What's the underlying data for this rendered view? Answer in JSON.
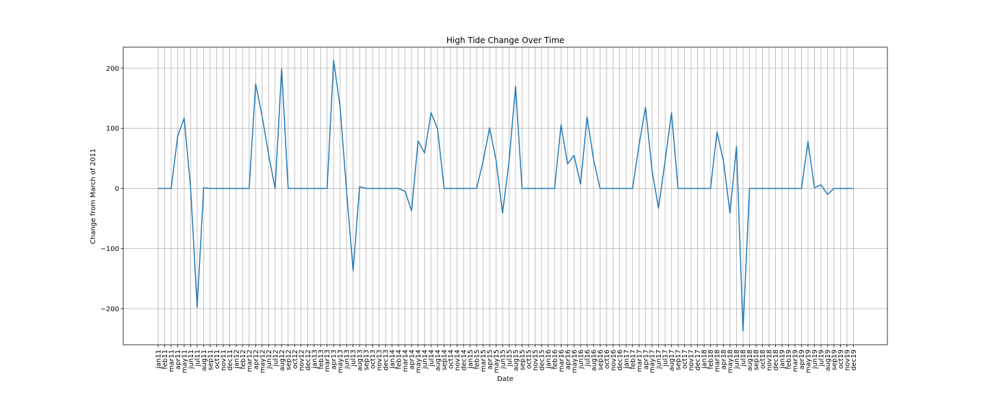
{
  "chart_data": {
    "type": "line",
    "title": "High Tide Change Over Time",
    "xlabel": "Date",
    "ylabel": "Change from March of 2011",
    "ylim": [
      -260,
      235
    ],
    "yticks": [
      -200,
      -100,
      0,
      100,
      200
    ],
    "ytick_labels": [
      "−200",
      "−100",
      "0",
      "100",
      "200"
    ],
    "grid": true,
    "line_color": "#1f77b4",
    "categories": [
      "jan11",
      "feb11",
      "mar11",
      "apr11",
      "may11",
      "jun11",
      "jul11",
      "aug11",
      "sep11",
      "oct11",
      "nov11",
      "dec11",
      "jan12",
      "feb12",
      "mar12",
      "apr12",
      "may12",
      "jun12",
      "jul12",
      "aug12",
      "sep12",
      "oct12",
      "nov12",
      "dec12",
      "jan13",
      "feb13",
      "mar13",
      "apr13",
      "may13",
      "jun13",
      "jul13",
      "aug13",
      "sep13",
      "oct13",
      "nov13",
      "dec13",
      "jan14",
      "feb14",
      "mar14",
      "apr14",
      "may14",
      "jun14",
      "jul14",
      "aug14",
      "sep14",
      "oct14",
      "nov14",
      "dec14",
      "jan15",
      "feb15",
      "mar15",
      "apr15",
      "may15",
      "jun15",
      "jul15",
      "aug15",
      "sep15",
      "oct15",
      "nov15",
      "dec15",
      "jan16",
      "feb16",
      "mar16",
      "apr16",
      "may16",
      "jun16",
      "jul16",
      "aug16",
      "sep16",
      "oct16",
      "nov16",
      "dec16",
      "jan17",
      "feb17",
      "mar17",
      "apr17",
      "may17",
      "jun17",
      "jul17",
      "aug17",
      "sep17",
      "oct17",
      "nov17",
      "dec17",
      "jan18",
      "feb18",
      "mar18",
      "apr18",
      "may18",
      "jun18",
      "jul18",
      "aug18",
      "sep18",
      "oct18",
      "nov18",
      "dec18",
      "jan19",
      "feb19",
      "mar19",
      "apr19",
      "may19",
      "jun19",
      "jul19",
      "aug19",
      "sep19",
      "oct19",
      "nov19",
      "dec19"
    ],
    "values": [
      0,
      0,
      0,
      87,
      117,
      0,
      -198,
      1,
      0,
      0,
      0,
      0,
      0,
      0,
      0,
      174,
      120,
      56,
      0,
      199,
      0,
      0,
      0,
      0,
      0,
      0,
      0,
      213,
      135,
      -5,
      -137,
      3,
      0,
      0,
      0,
      0,
      0,
      0,
      -5,
      -37,
      79,
      59,
      126,
      99,
      0,
      0,
      0,
      0,
      0,
      0,
      45,
      101,
      47,
      -41,
      45,
      170,
      0,
      0,
      0,
      0,
      0,
      0,
      106,
      41,
      55,
      7,
      119,
      48,
      0,
      0,
      0,
      0,
      0,
      0,
      72,
      135,
      30,
      -33,
      45,
      126,
      0,
      0,
      0,
      0,
      0,
      0,
      94,
      45,
      -41,
      70,
      -237,
      0,
      0,
      0,
      0,
      0,
      0,
      0,
      0,
      0,
      78,
      1,
      6,
      -10,
      0,
      0,
      0,
      0
    ]
  }
}
